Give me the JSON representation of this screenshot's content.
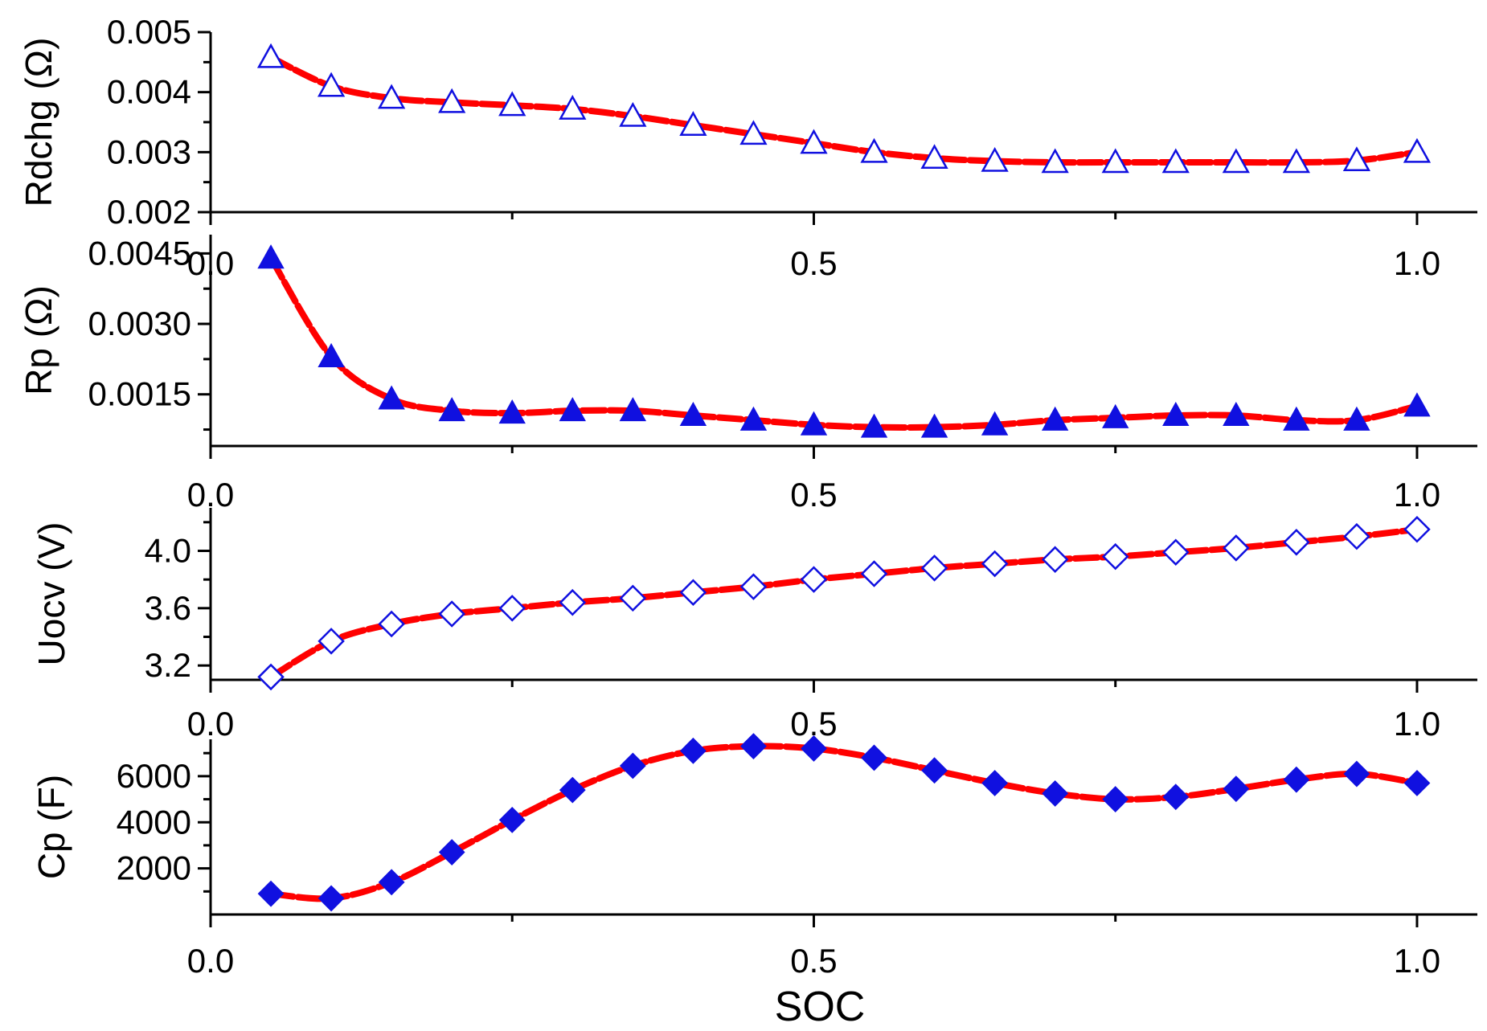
{
  "chart_data": [
    {
      "type": "line",
      "ylabel": "Rdchg (Ω)",
      "xlabel": "",
      "xlim": [
        0.0,
        1.05
      ],
      "ylim": [
        0.002,
        0.005
      ],
      "x_ticks": [
        0.0,
        0.5,
        1.0
      ],
      "x_tick_labels": [
        "0.0",
        "0.5",
        "1.0"
      ],
      "y_ticks": [
        0.002,
        0.003,
        0.004,
        0.005
      ],
      "y_tick_labels": [
        "0.002",
        "0.003",
        "0.004",
        "0.005"
      ],
      "marker": "triangle-open",
      "marker_color": "#1010e0",
      "line_color": "#ff0000",
      "series": [
        {
          "name": "Rdchg",
          "x": [
            0.05,
            0.1,
            0.15,
            0.2,
            0.25,
            0.3,
            0.35,
            0.4,
            0.45,
            0.5,
            0.55,
            0.6,
            0.65,
            0.7,
            0.75,
            0.8,
            0.85,
            0.9,
            0.95,
            1.0
          ],
          "values": [
            0.00458,
            0.0041,
            0.0039,
            0.00383,
            0.00378,
            0.00372,
            0.0036,
            0.00345,
            0.0033,
            0.00315,
            0.003,
            0.0029,
            0.00285,
            0.00283,
            0.00283,
            0.00283,
            0.00283,
            0.00283,
            0.00286,
            0.003
          ]
        }
      ]
    },
    {
      "type": "line",
      "ylabel": "Rp (Ω)",
      "xlabel": "",
      "xlim": [
        0.0,
        1.05
      ],
      "ylim": [
        0.0004,
        0.0049
      ],
      "x_ticks": [
        0.0,
        0.5,
        1.0
      ],
      "x_tick_labels": [
        "0.0",
        "0.5",
        "1.0"
      ],
      "y_ticks": [
        0.0015,
        0.003,
        0.0045
      ],
      "y_tick_labels": [
        "0.0015",
        "0.0030",
        "0.0045"
      ],
      "marker": "triangle-filled",
      "marker_color": "#1010e0",
      "line_color": "#ff0000",
      "series": [
        {
          "name": "Rp",
          "x": [
            0.05,
            0.1,
            0.15,
            0.2,
            0.25,
            0.3,
            0.35,
            0.4,
            0.45,
            0.5,
            0.55,
            0.6,
            0.65,
            0.7,
            0.75,
            0.8,
            0.85,
            0.9,
            0.95,
            1.0
          ],
          "values": [
            0.0044,
            0.0023,
            0.0014,
            0.00115,
            0.0011,
            0.00115,
            0.00115,
            0.00105,
            0.00095,
            0.00085,
            0.0008,
            0.0008,
            0.00085,
            0.00095,
            0.001,
            0.00105,
            0.00105,
            0.00095,
            0.00095,
            0.00125
          ]
        }
      ]
    },
    {
      "type": "line",
      "ylabel": "Uocv (V)",
      "xlabel": "",
      "xlim": [
        0.0,
        1.05
      ],
      "ylim": [
        3.1,
        4.3
      ],
      "x_ticks": [
        0.0,
        0.5,
        1.0
      ],
      "x_tick_labels": [
        "0.0",
        "0.5",
        "1.0"
      ],
      "y_ticks": [
        3.2,
        3.6,
        4.0
      ],
      "y_tick_labels": [
        "3.2",
        "3.6",
        "4.0"
      ],
      "marker": "diamond-open",
      "marker_color": "#1010e0",
      "line_color": "#ff0000",
      "series": [
        {
          "name": "Uocv",
          "x": [
            0.05,
            0.1,
            0.15,
            0.2,
            0.25,
            0.3,
            0.35,
            0.4,
            0.45,
            0.5,
            0.55,
            0.6,
            0.65,
            0.7,
            0.75,
            0.8,
            0.85,
            0.9,
            0.95,
            1.0
          ],
          "values": [
            3.12,
            3.37,
            3.49,
            3.56,
            3.6,
            3.64,
            3.67,
            3.71,
            3.75,
            3.8,
            3.84,
            3.88,
            3.91,
            3.94,
            3.96,
            3.99,
            4.02,
            4.06,
            4.1,
            4.15
          ]
        }
      ]
    },
    {
      "type": "line",
      "ylabel": "Cp (F)",
      "xlabel": "SOC",
      "xlim": [
        0.0,
        1.05
      ],
      "ylim": [
        0,
        7600
      ],
      "x_ticks": [
        0.0,
        0.5,
        1.0
      ],
      "x_tick_labels": [
        "0.0",
        "0.5",
        "1.0"
      ],
      "y_ticks": [
        2000,
        4000,
        6000
      ],
      "y_tick_labels": [
        "2000",
        "4000",
        "6000"
      ],
      "marker": "diamond-filled",
      "marker_color": "#1010e0",
      "line_color": "#ff0000",
      "series": [
        {
          "name": "Cp",
          "x": [
            0.05,
            0.1,
            0.15,
            0.2,
            0.25,
            0.3,
            0.35,
            0.4,
            0.45,
            0.5,
            0.55,
            0.6,
            0.65,
            0.7,
            0.75,
            0.8,
            0.85,
            0.9,
            0.95,
            1.0
          ],
          "values": [
            900,
            700,
            1400,
            2700,
            4100,
            5400,
            6450,
            7100,
            7300,
            7200,
            6800,
            6250,
            5700,
            5250,
            5000,
            5100,
            5450,
            5850,
            6100,
            5700
          ]
        }
      ]
    }
  ]
}
